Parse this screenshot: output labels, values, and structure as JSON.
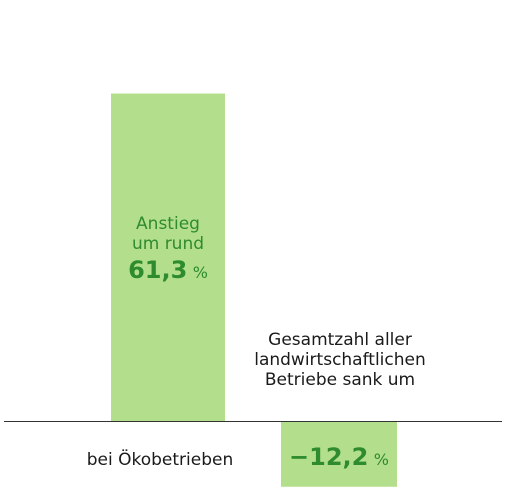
{
  "chart_data": {
    "type": "bar",
    "categories": [
      "bei Ökobetrieben",
      "Gesamtzahl aller landwirtschaftlichen Betriebe"
    ],
    "values": [
      61.3,
      -12.2
    ],
    "ylim": [
      -16.5,
      70
    ],
    "grid": false,
    "bar_color": "#b3df8c",
    "value_color": "#2e8b2e",
    "labels": {
      "increase_line1": "Anstieg",
      "increase_line2": "um rund",
      "increase_value": "61,3",
      "decrease_line1": "Gesamtzahl aller",
      "decrease_line2": "landwirtschaftlichen",
      "decrease_line3": "Betriebe sank um",
      "decrease_value": "−12,2",
      "unit": "%",
      "category_label": "bei Ökobetrieben"
    }
  }
}
